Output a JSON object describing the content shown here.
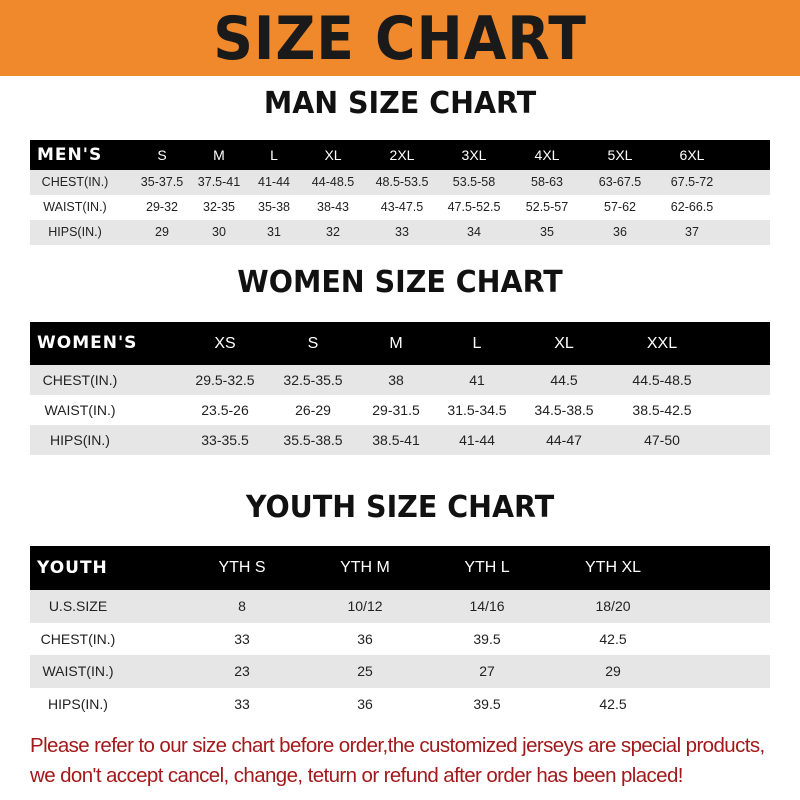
{
  "banner": {
    "title": "SIZE CHART",
    "color": "#f0892b"
  },
  "men": {
    "title": "MAN SIZE CHART",
    "headers": [
      "MEN'S",
      "S",
      "M",
      "L",
      "XL",
      "2XL",
      "3XL",
      "4XL",
      "5XL",
      "6XL"
    ],
    "rows": [
      [
        "CHEST(IN.)",
        "35-37.5",
        "37.5-41",
        "41-44",
        "44-48.5",
        "48.5-53.5",
        "53.5-58",
        "58-63",
        "63-67.5",
        "67.5-72"
      ],
      [
        "WAIST(IN.)",
        "29-32",
        "32-35",
        "35-38",
        "38-43",
        "43-47.5",
        "47.5-52.5",
        "52.5-57",
        "57-62",
        "62-66.5"
      ],
      [
        "HIPS(IN.)",
        "29",
        "30",
        "31",
        "32",
        "33",
        "34",
        "35",
        "36",
        "37"
      ]
    ]
  },
  "women": {
    "title": "WOMEN SIZE CHART",
    "headers": [
      "WOMEN'S",
      "XS",
      "S",
      "M",
      "L",
      "XL",
      "XXL"
    ],
    "rows": [
      [
        "CHEST(IN.)",
        "29.5-32.5",
        "32.5-35.5",
        "38",
        "41",
        "44.5",
        "44.5-48.5"
      ],
      [
        "WAIST(IN.)",
        "23.5-26",
        "26-29",
        "29-31.5",
        "31.5-34.5",
        "34.5-38.5",
        "38.5-42.5"
      ],
      [
        "HIPS(IN.)",
        "33-35.5",
        "35.5-38.5",
        "38.5-41",
        "41-44",
        "44-47",
        "47-50"
      ]
    ]
  },
  "youth": {
    "title": "YOUTH SIZE CHART",
    "headers": [
      "YOUTH",
      "YTH S",
      "YTH M",
      "YTH L",
      "YTH XL"
    ],
    "rows": [
      [
        "U.S.SIZE",
        "8",
        "10/12",
        "14/16",
        "18/20"
      ],
      [
        "CHEST(IN.)",
        "33",
        "36",
        "39.5",
        "42.5"
      ],
      [
        "WAIST(IN.)",
        "23",
        "25",
        "27",
        "29"
      ],
      [
        "HIPS(IN.)",
        "33",
        "36",
        "39.5",
        "42.5"
      ]
    ]
  },
  "notice": {
    "line1": "Please refer to our size chart before order,the customized jerseys are special products,",
    "line2": "we don't accept cancel, change, teturn or refund after order has been placed!",
    "color": "#a3191b"
  }
}
